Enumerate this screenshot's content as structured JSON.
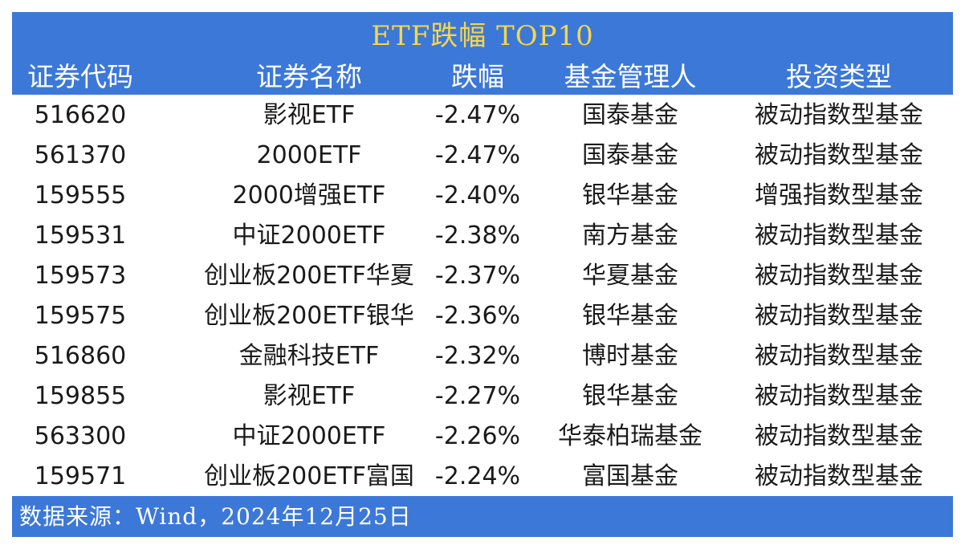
{
  "title": "ETF跌幅 TOP10",
  "columns": [
    "证券代码",
    "证券名称",
    "跌幅",
    "基金管理人",
    "投资类型"
  ],
  "rows": [
    [
      "516620",
      "影视ETF",
      "-2.47%",
      "国泰基金",
      "被动指数型基金"
    ],
    [
      "561370",
      "2000ETF",
      "-2.47%",
      "国泰基金",
      "被动指数型基金"
    ],
    [
      "159555",
      "2000增强ETF",
      "-2.40%",
      "银华基金",
      "增强指数型基金"
    ],
    [
      "159531",
      "中证2000ETF",
      "-2.38%",
      "南方基金",
      "被动指数型基金"
    ],
    [
      "159573",
      "创业板200ETF华夏",
      "-2.37%",
      "华夏基金",
      "被动指数型基金"
    ],
    [
      "159575",
      "创业板200ETF银华",
      "-2.36%",
      "银华基金",
      "被动指数型基金"
    ],
    [
      "516860",
      "金融科技ETF",
      "-2.32%",
      "博时基金",
      "被动指数型基金"
    ],
    [
      "159855",
      "影视ETF",
      "-2.27%",
      "银华基金",
      "被动指数型基金"
    ],
    [
      "563300",
      "中证2000ETF",
      "-2.26%",
      "华泰柏瑞基金",
      "被动指数型基金"
    ],
    [
      "159571",
      "创业板200ETF富国",
      "-2.24%",
      "富国基金",
      "被动指数型基金"
    ]
  ],
  "source": "数据来源：Wind，2024年12月25日",
  "colors": {
    "header_bg": "#3c78d8",
    "title_text": "#f6d64a",
    "header_text": "#ffffff",
    "body_text": "#1a1a1a"
  }
}
